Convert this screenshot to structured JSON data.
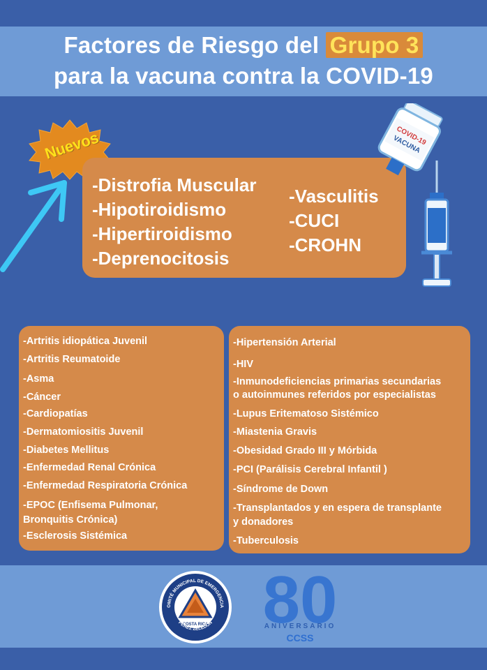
{
  "header": {
    "title_part1": "Factores de Riesgo del",
    "title_highlight": "Grupo 3",
    "title_line2": "para la vacuna contra la COVID-19"
  },
  "badge": {
    "label": "Nuevos"
  },
  "new_conditions": {
    "col1": [
      "-Distrofia Muscular",
      "-Hipotiroidismo",
      "-Hipertiroidismo",
      "-Deprenocitosis"
    ],
    "col2": [
      "-Vasculitis",
      "-CUCI",
      "-CROHN"
    ]
  },
  "vaccine": {
    "vial_label_1": "COVID-19",
    "vial_label_2": "VACUNA"
  },
  "left_list": [
    "-Artritis idiopática Juvenil",
    "-Artritis Reumatoide",
    "-Asma",
    "-Cáncer",
    "-Cardiopatías",
    "-Dermatomiositis Juvenil",
    "-Diabetes Mellitus",
    "-Enfermedad Renal Crónica",
    "-Enfermedad Respiratoria Crónica",
    "-EPOC (Enfisema Pulmonar,",
    " Bronquitis Crónica)",
    "-Esclerosis Sistémica"
  ],
  "right_list": [
    "-Hipertensión Arterial",
    "-HIV",
    "-Inmunodeficiencias primarias secundarias",
    "o autoinmunes referidos por especialistas",
    "-Lupus Eritematoso Sistémico",
    "-Miastenia Gravis",
    "-Obesidad Grado III y Mórbida",
    "-PCI (Parálisis Cerebral Infantil )",
    "-Síndrome de Down",
    "-Transplantados y en espera de transplante",
    " y donadores",
    "-Tuberculosis"
  ],
  "footer": {
    "seal_top": "COMITÉ MUNICIPAL DE EMERGENCIAS",
    "seal_mid": "COSTA RICA",
    "seal_bottom": "PÉREZ ZELEDÓN",
    "anniv_number": "80",
    "anniv_label": "ANIVERSARIO",
    "ccss_label": "CCSS"
  },
  "colors": {
    "background": "#3a5fa8",
    "band": "#6f9bd6",
    "box": "#d58a4a",
    "highlight_text": "#ffe35a",
    "arrow": "#3ec8f5"
  }
}
